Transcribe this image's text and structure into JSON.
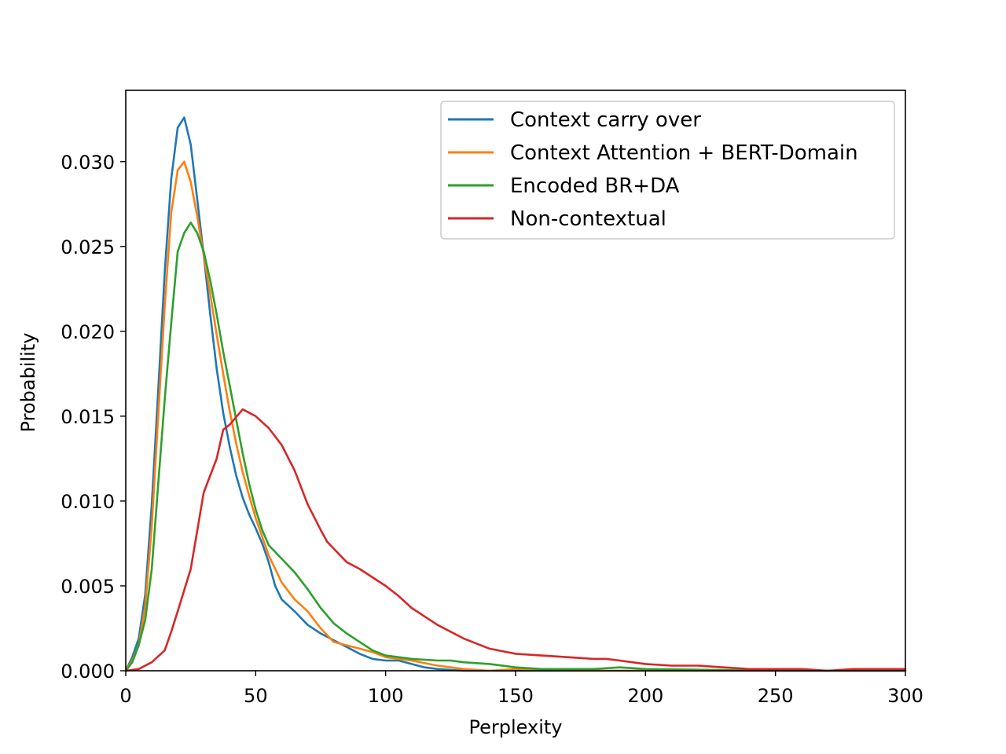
{
  "chart_data": {
    "type": "line",
    "xlabel": "Perplexity",
    "ylabel": "Probability",
    "xlim": [
      0,
      300
    ],
    "ylim": [
      0,
      0.0342
    ],
    "x_ticks": [
      "0",
      "50",
      "100",
      "150",
      "200",
      "250",
      "300"
    ],
    "y_ticks": [
      "0.000",
      "0.005",
      "0.010",
      "0.015",
      "0.020",
      "0.025",
      "0.030"
    ],
    "grid": false,
    "legend_position": "top-right",
    "series": [
      {
        "name": "Context carry over",
        "color": "#1f77b4",
        "points": [
          [
            0,
            0
          ],
          [
            2.5,
            0.0008
          ],
          [
            5,
            0.0019
          ],
          [
            7.5,
            0.0045
          ],
          [
            10,
            0.0098
          ],
          [
            12.5,
            0.0165
          ],
          [
            15,
            0.0235
          ],
          [
            17.5,
            0.029
          ],
          [
            20,
            0.032
          ],
          [
            22.5,
            0.0326
          ],
          [
            25,
            0.031
          ],
          [
            27.5,
            0.0278
          ],
          [
            30,
            0.0245
          ],
          [
            32.5,
            0.021
          ],
          [
            35,
            0.0178
          ],
          [
            37.5,
            0.0152
          ],
          [
            40,
            0.0132
          ],
          [
            42.5,
            0.0115
          ],
          [
            45,
            0.0102
          ],
          [
            47.5,
            0.0092
          ],
          [
            50,
            0.0084
          ],
          [
            52.5,
            0.0075
          ],
          [
            55,
            0.0064
          ],
          [
            57.5,
            0.005
          ],
          [
            60,
            0.0042
          ],
          [
            65,
            0.0035
          ],
          [
            70,
            0.0027
          ],
          [
            75,
            0.0022
          ],
          [
            80,
            0.0018
          ],
          [
            85,
            0.0014
          ],
          [
            90,
            0.001
          ],
          [
            95,
            0.0007
          ],
          [
            100,
            0.0006
          ],
          [
            105,
            0.0006
          ],
          [
            110,
            0.0004
          ],
          [
            115,
            0.0002
          ],
          [
            120,
            0.0001
          ],
          [
            130,
            0
          ],
          [
            150,
            0
          ],
          [
            200,
            0
          ],
          [
            250,
            0
          ],
          [
            300,
            0
          ]
        ]
      },
      {
        "name": "Context Attention + BERT-Domain",
        "color": "#ff7f0e",
        "points": [
          [
            0,
            0
          ],
          [
            2.5,
            0.0006
          ],
          [
            5,
            0.0015
          ],
          [
            7.5,
            0.0038
          ],
          [
            10,
            0.0085
          ],
          [
            12.5,
            0.015
          ],
          [
            15,
            0.0215
          ],
          [
            17.5,
            0.027
          ],
          [
            20,
            0.0295
          ],
          [
            22.5,
            0.03
          ],
          [
            25,
            0.0288
          ],
          [
            27.5,
            0.0268
          ],
          [
            30,
            0.0245
          ],
          [
            32.5,
            0.0222
          ],
          [
            35,
            0.0198
          ],
          [
            37.5,
            0.0175
          ],
          [
            40,
            0.0153
          ],
          [
            42.5,
            0.0134
          ],
          [
            45,
            0.0117
          ],
          [
            47.5,
            0.0103
          ],
          [
            50,
            0.009
          ],
          [
            55,
            0.0068
          ],
          [
            60,
            0.0052
          ],
          [
            65,
            0.0042
          ],
          [
            70,
            0.0035
          ],
          [
            75,
            0.0025
          ],
          [
            80,
            0.0017
          ],
          [
            85,
            0.0015
          ],
          [
            90,
            0.0013
          ],
          [
            95,
            0.0011
          ],
          [
            100,
            0.0008
          ],
          [
            110,
            0.0006
          ],
          [
            120,
            0.0003
          ],
          [
            130,
            0.0001
          ],
          [
            140,
            0
          ],
          [
            150,
            0.0001
          ],
          [
            170,
            0
          ],
          [
            200,
            0
          ],
          [
            250,
            0
          ],
          [
            300,
            0
          ]
        ]
      },
      {
        "name": "Encoded BR+DA",
        "color": "#2ca02c",
        "points": [
          [
            0,
            0
          ],
          [
            2.5,
            0.0005
          ],
          [
            5,
            0.0015
          ],
          [
            7.5,
            0.003
          ],
          [
            10,
            0.006
          ],
          [
            12.5,
            0.011
          ],
          [
            15,
            0.016
          ],
          [
            17.5,
            0.0205
          ],
          [
            20,
            0.0247
          ],
          [
            22.5,
            0.0258
          ],
          [
            25,
            0.0264
          ],
          [
            27.5,
            0.0258
          ],
          [
            30,
            0.0247
          ],
          [
            32.5,
            0.023
          ],
          [
            35,
            0.021
          ],
          [
            37.5,
            0.0188
          ],
          [
            40,
            0.0168
          ],
          [
            42.5,
            0.0148
          ],
          [
            45,
            0.0128
          ],
          [
            47.5,
            0.011
          ],
          [
            50,
            0.0095
          ],
          [
            52.5,
            0.0083
          ],
          [
            55,
            0.0074
          ],
          [
            60,
            0.0066
          ],
          [
            65,
            0.0058
          ],
          [
            70,
            0.0048
          ],
          [
            75,
            0.0037
          ],
          [
            80,
            0.0028
          ],
          [
            85,
            0.0022
          ],
          [
            90,
            0.0017
          ],
          [
            95,
            0.0012
          ],
          [
            100,
            0.0009
          ],
          [
            110,
            0.0007
          ],
          [
            120,
            0.0006
          ],
          [
            125,
            0.0006
          ],
          [
            130,
            0.0005
          ],
          [
            140,
            0.0004
          ],
          [
            150,
            0.0002
          ],
          [
            160,
            0.0001
          ],
          [
            180,
            0.0001
          ],
          [
            190,
            0.0002
          ],
          [
            200,
            0.0001
          ],
          [
            250,
            0
          ],
          [
            300,
            0
          ]
        ]
      },
      {
        "name": "Non-contextual",
        "color": "#d62728",
        "points": [
          [
            0,
            0
          ],
          [
            5,
            0.0001
          ],
          [
            10,
            0.0005
          ],
          [
            15,
            0.0012
          ],
          [
            17.5,
            0.0023
          ],
          [
            20,
            0.0035
          ],
          [
            25,
            0.006
          ],
          [
            30,
            0.0105
          ],
          [
            35,
            0.0125
          ],
          [
            37.5,
            0.0142
          ],
          [
            40,
            0.0145
          ],
          [
            45,
            0.0154
          ],
          [
            50,
            0.015
          ],
          [
            55,
            0.0143
          ],
          [
            60,
            0.0133
          ],
          [
            65,
            0.0118
          ],
          [
            70,
            0.0098
          ],
          [
            75,
            0.0083
          ],
          [
            77.5,
            0.0076
          ],
          [
            80,
            0.0072
          ],
          [
            85,
            0.0064
          ],
          [
            90,
            0.006
          ],
          [
            100,
            0.005
          ],
          [
            105,
            0.0044
          ],
          [
            110,
            0.0037
          ],
          [
            115,
            0.0032
          ],
          [
            120,
            0.0027
          ],
          [
            130,
            0.0019
          ],
          [
            140,
            0.0013
          ],
          [
            150,
            0.001
          ],
          [
            160,
            0.0009
          ],
          [
            170,
            0.0008
          ],
          [
            180,
            0.0007
          ],
          [
            185,
            0.0007
          ],
          [
            190,
            0.0006
          ],
          [
            200,
            0.0004
          ],
          [
            210,
            0.0003
          ],
          [
            220,
            0.0003
          ],
          [
            230,
            0.0002
          ],
          [
            240,
            0.0001
          ],
          [
            250,
            0.0001
          ],
          [
            260,
            0.0001
          ],
          [
            270,
            0
          ],
          [
            280,
            0.0001
          ],
          [
            290,
            0.0001
          ],
          [
            300,
            0.0001
          ]
        ]
      }
    ]
  }
}
